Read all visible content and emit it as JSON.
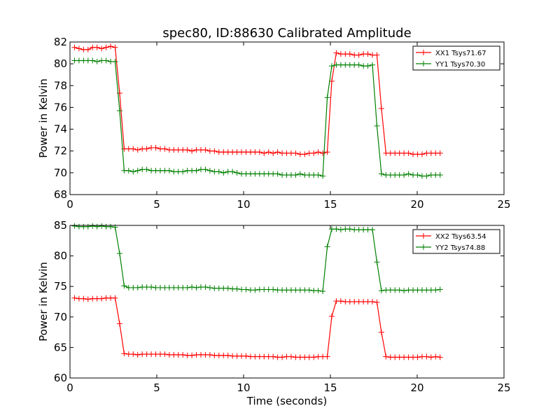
{
  "chart_data": {
    "title": "spec80, ID:88630 Calibrated Amplitude",
    "charts": [
      {
        "type": "line",
        "title": "spec80, ID:88630 Calibrated Amplitude",
        "xlabel": "",
        "ylabel": "Power in Kelvin",
        "xlim": [
          0,
          25
        ],
        "ylim": [
          68,
          82
        ],
        "xticks": [
          "0",
          "5",
          "10",
          "15",
          "20",
          "25"
        ],
        "yticks": [
          "68",
          "70",
          "72",
          "74",
          "76",
          "78",
          "80",
          "82"
        ],
        "legend_position": "top-right",
        "series": [
          {
            "name": "XX1 Tsys71.67",
            "color": "#ff0000",
            "x": [
              0.26,
              0.52,
              0.78,
              1.04,
              1.3,
              1.56,
              1.82,
              2.08,
              2.34,
              2.6,
              2.86,
              3.12,
              3.38,
              3.64,
              3.9,
              4.16,
              4.42,
              4.68,
              4.94,
              5.2,
              5.46,
              5.72,
              5.98,
              6.24,
              6.5,
              6.76,
              7.02,
              7.28,
              7.54,
              7.8,
              8.06,
              8.32,
              8.58,
              8.84,
              9.1,
              9.36,
              9.62,
              9.88,
              10.14,
              10.4,
              10.66,
              10.92,
              11.18,
              11.44,
              11.7,
              11.96,
              12.22,
              12.48,
              12.74,
              13.0,
              13.26,
              13.52,
              13.78,
              14.04,
              14.3,
              14.56,
              14.82,
              15.08,
              15.34,
              15.6,
              15.86,
              16.12,
              16.38,
              16.64,
              16.9,
              17.16,
              17.42,
              17.68,
              17.94,
              18.2,
              18.46,
              18.72,
              18.98,
              19.24,
              19.5,
              19.76,
              20.02,
              20.28,
              20.54,
              20.8,
              21.06,
              21.32
            ],
            "values": [
              81.5,
              81.4,
              81.3,
              81.3,
              81.5,
              81.5,
              81.4,
              81.5,
              81.6,
              81.5,
              77.3,
              72.2,
              72.2,
              72.2,
              72.1,
              72.2,
              72.2,
              72.3,
              72.3,
              72.2,
              72.2,
              72.1,
              72.1,
              72.1,
              72.1,
              72.1,
              72.0,
              72.1,
              72.1,
              72.1,
              72.0,
              72.0,
              71.9,
              71.9,
              71.9,
              71.9,
              71.9,
              71.9,
              71.9,
              71.9,
              71.9,
              71.9,
              71.8,
              71.9,
              71.8,
              71.9,
              71.8,
              71.8,
              71.8,
              71.8,
              71.7,
              71.7,
              71.8,
              71.8,
              71.9,
              71.8,
              71.9,
              78.4,
              81.0,
              80.9,
              80.9,
              80.9,
              80.8,
              80.8,
              80.9,
              80.9,
              80.8,
              80.8,
              75.9,
              71.8,
              71.8,
              71.8,
              71.8,
              71.8,
              71.8,
              71.7,
              71.7,
              71.7,
              71.8,
              71.8,
              71.8,
              71.8
            ]
          },
          {
            "name": "YY1 Tsys70.30",
            "color": "#008000",
            "x": [
              0.26,
              0.52,
              0.78,
              1.04,
              1.3,
              1.56,
              1.82,
              2.08,
              2.34,
              2.6,
              2.86,
              3.12,
              3.38,
              3.64,
              3.9,
              4.16,
              4.42,
              4.68,
              4.94,
              5.2,
              5.46,
              5.72,
              5.98,
              6.24,
              6.5,
              6.76,
              7.02,
              7.28,
              7.54,
              7.8,
              8.06,
              8.32,
              8.58,
              8.84,
              9.1,
              9.36,
              9.62,
              9.88,
              10.14,
              10.4,
              10.66,
              10.92,
              11.18,
              11.44,
              11.7,
              11.96,
              12.22,
              12.48,
              12.74,
              13.0,
              13.26,
              13.52,
              13.78,
              14.04,
              14.3,
              14.56,
              14.82,
              15.08,
              15.34,
              15.6,
              15.86,
              16.12,
              16.38,
              16.64,
              16.9,
              17.16,
              17.42,
              17.68,
              17.94,
              18.2,
              18.46,
              18.72,
              18.98,
              19.24,
              19.5,
              19.76,
              20.02,
              20.28,
              20.54,
              20.8,
              21.06,
              21.32
            ],
            "values": [
              80.3,
              80.3,
              80.3,
              80.3,
              80.3,
              80.2,
              80.3,
              80.3,
              80.2,
              80.2,
              75.7,
              70.2,
              70.2,
              70.1,
              70.2,
              70.3,
              70.3,
              70.2,
              70.2,
              70.2,
              70.2,
              70.2,
              70.1,
              70.1,
              70.1,
              70.2,
              70.2,
              70.2,
              70.3,
              70.3,
              70.2,
              70.1,
              70.1,
              70.0,
              70.1,
              70.1,
              70.0,
              69.9,
              69.9,
              69.9,
              69.9,
              69.9,
              69.9,
              69.9,
              69.9,
              69.9,
              69.8,
              69.8,
              69.8,
              69.8,
              69.9,
              69.8,
              69.8,
              69.8,
              69.8,
              69.7,
              76.9,
              79.8,
              79.9,
              79.9,
              79.9,
              79.9,
              79.9,
              79.9,
              79.8,
              79.8,
              79.9,
              74.3,
              69.9,
              69.8,
              69.8,
              69.8,
              69.8,
              69.8,
              69.9,
              69.8,
              69.8,
              69.7,
              69.7,
              69.8,
              69.8,
              69.8
            ]
          }
        ]
      },
      {
        "type": "line",
        "title": "",
        "xlabel": "Time (seconds)",
        "ylabel": "Power in Kelvin",
        "xlim": [
          0,
          25
        ],
        "ylim": [
          60,
          85
        ],
        "xticks": [
          "0",
          "5",
          "10",
          "15",
          "20",
          "25"
        ],
        "yticks": [
          "60",
          "65",
          "70",
          "75",
          "80",
          "85"
        ],
        "legend_position": "top-right",
        "series": [
          {
            "name": "XX2 Tsys63.54",
            "color": "#ff0000",
            "x": [
              0.26,
              0.52,
              0.78,
              1.04,
              1.3,
              1.56,
              1.82,
              2.08,
              2.34,
              2.6,
              2.86,
              3.12,
              3.38,
              3.64,
              3.9,
              4.16,
              4.42,
              4.68,
              4.94,
              5.2,
              5.46,
              5.72,
              5.98,
              6.24,
              6.5,
              6.76,
              7.02,
              7.28,
              7.54,
              7.8,
              8.06,
              8.32,
              8.58,
              8.84,
              9.1,
              9.36,
              9.62,
              9.88,
              10.14,
              10.4,
              10.66,
              10.92,
              11.18,
              11.44,
              11.7,
              11.96,
              12.22,
              12.48,
              12.74,
              13.0,
              13.26,
              13.52,
              13.78,
              14.04,
              14.3,
              14.56,
              14.82,
              15.08,
              15.34,
              15.6,
              15.86,
              16.12,
              16.38,
              16.64,
              16.9,
              17.16,
              17.42,
              17.68,
              17.94,
              18.2,
              18.46,
              18.72,
              18.98,
              19.24,
              19.5,
              19.76,
              20.02,
              20.28,
              20.54,
              20.8,
              21.06,
              21.32
            ],
            "values": [
              73.1,
              73.0,
              73.0,
              72.9,
              73.0,
              73.0,
              73.0,
              73.1,
              73.1,
              73.1,
              68.9,
              64.0,
              63.9,
              63.9,
              63.8,
              63.9,
              63.9,
              63.9,
              63.9,
              63.9,
              63.9,
              63.8,
              63.8,
              63.8,
              63.8,
              63.7,
              63.7,
              63.8,
              63.8,
              63.8,
              63.8,
              63.7,
              63.7,
              63.7,
              63.7,
              63.6,
              63.6,
              63.6,
              63.6,
              63.5,
              63.5,
              63.5,
              63.5,
              63.5,
              63.5,
              63.4,
              63.4,
              63.5,
              63.5,
              63.4,
              63.4,
              63.4,
              63.4,
              63.4,
              63.5,
              63.5,
              63.5,
              70.1,
              72.6,
              72.6,
              72.5,
              72.5,
              72.5,
              72.5,
              72.5,
              72.5,
              72.5,
              72.4,
              67.5,
              63.5,
              63.4,
              63.4,
              63.4,
              63.4,
              63.4,
              63.4,
              63.4,
              63.5,
              63.5,
              63.4,
              63.5,
              63.4
            ]
          },
          {
            "name": "YY2 Tsys74.88",
            "color": "#008000",
            "x": [
              0.26,
              0.52,
              0.78,
              1.04,
              1.3,
              1.56,
              1.82,
              2.08,
              2.34,
              2.6,
              2.86,
              3.12,
              3.38,
              3.64,
              3.9,
              4.16,
              4.42,
              4.68,
              4.94,
              5.2,
              5.46,
              5.72,
              5.98,
              6.24,
              6.5,
              6.76,
              7.02,
              7.28,
              7.54,
              7.8,
              8.06,
              8.32,
              8.58,
              8.84,
              9.1,
              9.36,
              9.62,
              9.88,
              10.14,
              10.4,
              10.66,
              10.92,
              11.18,
              11.44,
              11.7,
              11.96,
              12.22,
              12.48,
              12.74,
              13.0,
              13.26,
              13.52,
              13.78,
              14.04,
              14.3,
              14.56,
              14.82,
              15.08,
              15.34,
              15.6,
              15.86,
              16.12,
              16.38,
              16.64,
              16.9,
              17.16,
              17.42,
              17.68,
              17.94,
              18.2,
              18.46,
              18.72,
              18.98,
              19.24,
              19.5,
              19.76,
              20.02,
              20.28,
              20.54,
              20.8,
              21.06,
              21.32
            ],
            "values": [
              84.9,
              84.8,
              84.8,
              84.8,
              84.9,
              84.8,
              84.9,
              84.8,
              84.8,
              84.7,
              80.4,
              75.1,
              74.8,
              74.8,
              74.8,
              74.9,
              74.9,
              74.9,
              74.8,
              74.8,
              74.8,
              74.8,
              74.8,
              74.8,
              74.8,
              74.8,
              74.9,
              74.8,
              74.9,
              74.9,
              74.8,
              74.7,
              74.7,
              74.7,
              74.7,
              74.6,
              74.6,
              74.5,
              74.5,
              74.4,
              74.4,
              74.5,
              74.5,
              74.5,
              74.5,
              74.4,
              74.4,
              74.4,
              74.4,
              74.4,
              74.4,
              74.4,
              74.4,
              74.3,
              74.3,
              74.2,
              81.5,
              84.4,
              84.4,
              84.3,
              84.4,
              84.4,
              84.3,
              84.3,
              84.3,
              84.3,
              84.3,
              79.0,
              74.3,
              74.4,
              74.4,
              74.4,
              74.4,
              74.3,
              74.4,
              74.4,
              74.4,
              74.4,
              74.4,
              74.4,
              74.4,
              74.5
            ]
          }
        ]
      }
    ]
  }
}
